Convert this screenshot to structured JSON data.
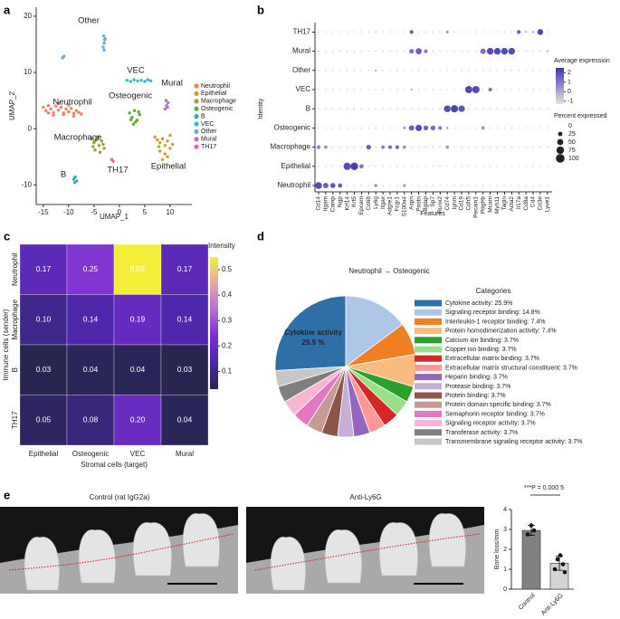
{
  "chart_data": [
    {
      "panel": "a",
      "type": "scatter",
      "xlabel": "UMAP_1",
      "ylabel": "UMAP_2",
      "xlim": [
        -16.4,
        14.3
      ],
      "ylim": [
        -13.5,
        21.6
      ],
      "xticks": [
        -15,
        -10,
        -5,
        0,
        5,
        10
      ],
      "yticks": [
        -10,
        0,
        10,
        20
      ],
      "series": [
        {
          "name": "Neutrophil",
          "color": "#f4806b",
          "x": [
            -15,
            -14.5,
            -14,
            -13.5,
            -13,
            -12.5,
            -12,
            -11.5,
            -11,
            -10.5,
            -10,
            -9.5,
            -9,
            -8.5,
            -8,
            -7.5,
            -14,
            -13,
            -12,
            -11,
            -10,
            -9
          ],
          "y": [
            3.8,
            3.2,
            4.1,
            3.5,
            2.9,
            4.0,
            3.3,
            3.8,
            2.8,
            3.5,
            3.0,
            3.6,
            2.7,
            3.2,
            2.9,
            2.6,
            2.8,
            2.4,
            4.5,
            2.5,
            4.2,
            2.2
          ]
        },
        {
          "name": "Epithelial",
          "color": "#d19a37",
          "x": [
            7,
            7.5,
            8,
            8.5,
            9,
            9.5,
            10,
            10.5,
            8,
            9,
            8.5,
            9.5,
            7.8,
            10
          ],
          "y": [
            -1.5,
            -2,
            -2.5,
            -1.8,
            -3,
            -2.2,
            -3.5,
            -2.8,
            -4,
            -4.5,
            -5.5,
            -5,
            -3.2,
            -1.2
          ]
        },
        {
          "name": "Macrophage",
          "color": "#a1a02a",
          "x": [
            -5.5,
            -5,
            -4.5,
            -4,
            -3.5,
            -3,
            -4.8,
            -3.8,
            -4.2,
            -5.2,
            -3.2
          ],
          "y": [
            -1.8,
            -2.5,
            -2,
            -3,
            -2.2,
            -3.5,
            -3.8,
            -4.2,
            -1.5,
            -3.2,
            -2.8
          ]
        },
        {
          "name": "Osteogenic",
          "color": "#5bb133",
          "x": [
            2,
            2.5,
            3,
            3.5,
            4,
            2.8,
            3.2,
            3.8,
            2.3
          ],
          "y": [
            2.8,
            2,
            3.2,
            1.5,
            2.5,
            0.8,
            1.2,
            3,
            1.6
          ]
        },
        {
          "name": "B",
          "color": "#2fb3a0",
          "x": [
            -9,
            -8.7,
            -8.4,
            -8.8
          ],
          "y": [
            -9,
            -8.6,
            -9.3,
            -9.6
          ]
        },
        {
          "name": "VEC",
          "color": "#3cb8c4",
          "x": [
            1.5,
            2.2,
            2.9,
            3.6,
            4.3,
            5,
            5.6,
            6.2
          ],
          "y": [
            8.6,
            8.4,
            8.7,
            8.5,
            8.6,
            8.4,
            8.7,
            8.5
          ]
        },
        {
          "name": "Other",
          "color": "#6da8dc",
          "x": [
            -3.2,
            -3,
            -2.8,
            -3.1,
            -2.9,
            -3,
            -11.2,
            -10.9
          ],
          "y": [
            14.5,
            15.2,
            16,
            16.5,
            15.8,
            14,
            12.6,
            12.9
          ]
        },
        {
          "name": "Mural",
          "color": "#b36fd6",
          "x": [
            9,
            9.3,
            9.6,
            9.2,
            9.5
          ],
          "y": [
            3.5,
            4.1,
            4.6,
            5,
            3.8
          ]
        },
        {
          "name": "TH17",
          "color": "#e563b8",
          "x": [
            -1.5,
            -1.2
          ],
          "y": [
            -5.5,
            -5.8
          ]
        }
      ],
      "annotations": [
        "Other",
        "VEC",
        "Osteogenic",
        "Neutrophil",
        "Mural",
        "Macrophage",
        "B",
        "TH17",
        "Epithelial"
      ]
    },
    {
      "panel": "b",
      "type": "dot",
      "ylabel": "Identity",
      "xlabel": "Features",
      "identities": [
        "Neutrophil",
        "Epithelial",
        "Macrophage",
        "Osteogenic",
        "B",
        "VEC",
        "Other",
        "Mural",
        "TH17"
      ],
      "features": [
        "Cd14",
        "Itgam",
        "Camp",
        "Ngp",
        "Krt14",
        "Krt5",
        "Epcam",
        "Cd68",
        "Ly6g",
        "Itgax",
        "Adgre1",
        "Fcgr1",
        "S100a4",
        "Aspn",
        "Postn",
        "Bglap",
        "Sp7",
        "Runx2",
        "Cd74",
        "Ighm",
        "Cd19",
        "Cdh5",
        "Pecam1",
        "Pdgfrb",
        "Mcam",
        "Myh11",
        "Tagln",
        "Acta2",
        "Il17a",
        "Cd8a",
        "Cd4",
        "Cd3e",
        "Lyve1"
      ],
      "percent": [
        [
          60,
          40,
          35,
          25,
          2,
          2,
          2,
          2,
          10,
          2,
          2,
          2,
          10,
          2,
          2,
          2,
          2,
          2,
          2,
          2,
          2,
          2,
          2,
          2,
          2,
          2,
          2,
          2,
          2,
          2,
          2,
          2,
          2
        ],
        [
          2,
          2,
          2,
          2,
          70,
          75,
          25,
          2,
          2,
          2,
          2,
          2,
          2,
          2,
          2,
          2,
          2,
          2,
          2,
          2,
          2,
          2,
          2,
          2,
          2,
          2,
          2,
          2,
          2,
          2,
          2,
          2,
          2
        ],
        [
          20,
          15,
          2,
          2,
          2,
          2,
          2,
          30,
          2,
          15,
          20,
          20,
          15,
          2,
          2,
          2,
          2,
          2,
          15,
          2,
          2,
          2,
          2,
          2,
          2,
          2,
          2,
          2,
          2,
          2,
          2,
          2,
          2
        ],
        [
          2,
          2,
          2,
          2,
          2,
          2,
          2,
          2,
          2,
          2,
          2,
          2,
          10,
          40,
          55,
          30,
          30,
          20,
          8,
          2,
          2,
          2,
          2,
          15,
          2,
          2,
          2,
          2,
          2,
          2,
          2,
          2,
          2
        ],
        [
          2,
          2,
          2,
          2,
          2,
          2,
          2,
          2,
          2,
          2,
          2,
          2,
          2,
          2,
          2,
          2,
          2,
          2,
          60,
          70,
          55,
          2,
          2,
          2,
          2,
          2,
          2,
          2,
          2,
          2,
          2,
          2,
          2
        ],
        [
          2,
          2,
          2,
          2,
          2,
          2,
          2,
          2,
          2,
          2,
          2,
          2,
          2,
          5,
          2,
          2,
          2,
          2,
          2,
          2,
          2,
          70,
          70,
          2,
          20,
          2,
          2,
          2,
          2,
          2,
          2,
          2,
          2
        ],
        [
          2,
          2,
          2,
          2,
          2,
          2,
          2,
          2,
          5,
          2,
          2,
          2,
          2,
          2,
          2,
          2,
          2,
          2,
          2,
          2,
          2,
          2,
          2,
          2,
          2,
          2,
          2,
          2,
          2,
          2,
          2,
          2,
          2
        ],
        [
          2,
          2,
          2,
          2,
          2,
          2,
          2,
          2,
          2,
          2,
          2,
          2,
          2,
          30,
          50,
          20,
          2,
          2,
          2,
          2,
          2,
          2,
          2,
          40,
          60,
          60,
          60,
          60,
          2,
          2,
          2,
          2,
          5
        ],
        [
          2,
          2,
          2,
          2,
          2,
          2,
          2,
          2,
          2,
          2,
          2,
          2,
          2,
          20,
          2,
          2,
          2,
          2,
          10,
          2,
          2,
          2,
          2,
          2,
          2,
          2,
          2,
          2,
          20,
          5,
          5,
          45,
          2
        ]
      ],
      "expression": [
        [
          2,
          1.5,
          1.8,
          1.5,
          -0.5,
          -0.5,
          -0.5,
          -0.5,
          1,
          -0.5,
          -0.5,
          -0.5,
          0.5,
          -0.5,
          -0.5,
          -0.5,
          -0.5,
          -0.5,
          -0.5,
          -0.5,
          -0.5,
          -0.5,
          -0.5,
          -0.5,
          -0.5,
          -0.5,
          -0.5,
          -0.5,
          -0.5,
          -0.5,
          -0.5,
          -0.5,
          -0.5
        ],
        [
          -0.5,
          -0.5,
          -0.5,
          -0.5,
          2,
          2.2,
          1,
          -0.5,
          -0.5,
          -0.5,
          -0.5,
          -0.5,
          -0.5,
          -0.5,
          -0.5,
          -0.5,
          -0.5,
          -0.5,
          -0.5,
          -0.5,
          -0.5,
          -0.5,
          -0.5,
          -0.5,
          -0.5,
          -0.5,
          -0.5,
          -0.5,
          -0.5,
          -0.5,
          -0.5,
          -0.5,
          -0.5
        ],
        [
          0.8,
          0.5,
          -0.5,
          -0.5,
          -0.5,
          -0.5,
          -0.5,
          1.5,
          -0.5,
          1,
          1.2,
          1.3,
          0.5,
          -0.5,
          -0.5,
          -0.5,
          -0.5,
          -0.5,
          0.3,
          -0.5,
          -0.5,
          -0.5,
          -0.5,
          -0.5,
          -0.5,
          -0.5,
          -0.5,
          -0.5,
          -0.5,
          -0.5,
          -0.5,
          -0.5,
          -0.5
        ],
        [
          -0.5,
          -0.5,
          -0.5,
          -0.5,
          -0.5,
          -0.5,
          -0.5,
          -0.5,
          -0.5,
          -0.5,
          -0.5,
          -0.5,
          0.2,
          1.5,
          2,
          1.5,
          1.3,
          1,
          0,
          -0.5,
          -0.5,
          -0.5,
          -0.5,
          0.5,
          -0.5,
          -0.5,
          -0.5,
          -0.5,
          -0.5,
          -0.5,
          -0.5,
          -0.5,
          -0.5
        ],
        [
          -0.5,
          -0.5,
          -0.5,
          -0.5,
          -0.5,
          -0.5,
          -0.5,
          -0.5,
          -0.5,
          -0.5,
          -0.5,
          -0.5,
          -0.5,
          -0.5,
          -0.5,
          -0.5,
          -0.5,
          -0.5,
          2,
          2.2,
          1.8,
          -0.5,
          -0.5,
          -0.5,
          -0.5,
          -0.5,
          -0.5,
          -0.5,
          -0.5,
          -0.5,
          -0.5,
          -0.5,
          -0.5
        ],
        [
          -0.5,
          -0.5,
          -0.5,
          -0.5,
          -0.5,
          -0.5,
          -0.5,
          -0.5,
          -0.5,
          -0.5,
          -0.5,
          -0.5,
          -0.5,
          0,
          -0.5,
          -0.5,
          -0.5,
          -0.5,
          -0.5,
          -0.5,
          -0.5,
          2,
          2,
          -0.5,
          1,
          -0.5,
          -0.5,
          -0.5,
          -0.5,
          -0.5,
          -0.5,
          -0.5,
          -0.5
        ],
        [
          -0.5,
          -0.5,
          -0.5,
          -0.5,
          -0.5,
          -0.5,
          -0.5,
          -0.5,
          0.2,
          -0.5,
          -0.5,
          -0.5,
          -0.5,
          -0.5,
          -0.5,
          -0.5,
          -0.5,
          -0.5,
          -0.5,
          -0.5,
          -0.5,
          -0.5,
          -0.5,
          -0.5,
          -0.5,
          -0.5,
          -0.5,
          -0.5,
          -0.5,
          -0.5,
          -0.5,
          -0.5,
          -0.5
        ],
        [
          -0.5,
          -0.5,
          -0.5,
          -0.5,
          -0.5,
          -0.5,
          -0.5,
          -0.5,
          -0.5,
          -0.5,
          -0.5,
          -0.5,
          -0.5,
          1,
          1.5,
          0.8,
          -0.5,
          -0.5,
          -0.5,
          -0.5,
          -0.5,
          -0.5,
          -0.5,
          1.2,
          2,
          2,
          2,
          2,
          -0.5,
          -0.5,
          -0.5,
          -0.5,
          0
        ],
        [
          -0.5,
          -0.5,
          -0.5,
          -0.5,
          -0.5,
          -0.5,
          -0.5,
          -0.5,
          -0.5,
          -0.5,
          -0.5,
          -0.5,
          -0.5,
          1.5,
          -0.5,
          -0.5,
          -0.5,
          -0.5,
          0.5,
          -0.5,
          -0.5,
          -0.5,
          -0.5,
          -0.5,
          -0.5,
          -0.5,
          -0.5,
          -0.5,
          1.5,
          0,
          0.5,
          2.2,
          -0.5
        ]
      ],
      "colorbar_title": "Average expression",
      "clim": [
        -1.3,
        2.5
      ],
      "cticks": [
        2,
        1,
        0,
        -1
      ],
      "colors": [
        "#e3e3e3",
        "#3d34b0"
      ],
      "size_title": "Percent expressed",
      "size_ticks": [
        0,
        25,
        50,
        75,
        100
      ]
    },
    {
      "panel": "c",
      "type": "heatmap",
      "rows": [
        "Neutrophil",
        "Macrophage",
        "B",
        "TH17"
      ],
      "columns": [
        "Epithelial",
        "Osteogenic",
        "VEC",
        "Mural"
      ],
      "values": [
        [
          0.17,
          0.25,
          0.55,
          0.17
        ],
        [
          0.1,
          0.14,
          0.19,
          0.14
        ],
        [
          0.03,
          0.04,
          0.04,
          0.03
        ],
        [
          0.05,
          0.08,
          0.2,
          0.04
        ]
      ],
      "value_labels": [
        [
          "0.17",
          "0.25",
          "0.55",
          "0.17"
        ],
        [
          "0.10",
          "0.14",
          "0.19",
          "0.14"
        ],
        [
          "0.03",
          "0.04",
          "0.04",
          "0.03"
        ],
        [
          "0.05",
          "0.08",
          "0.20",
          "0.04"
        ]
      ],
      "ylabel": "Immune cells (sender)",
      "xlabel": "Stromal cells (target)",
      "colorbar_title": "Intensity",
      "clim": [
        0.03,
        0.55
      ],
      "cticks": [
        0.1,
        0.2,
        0.3,
        0.4,
        0.5
      ],
      "colorscale": [
        "#262650",
        "#4b28a8",
        "#7a2ed0",
        "#b070d8",
        "#e0a8a8",
        "#f3ee3a"
      ]
    },
    {
      "panel": "d",
      "type": "pie",
      "title": "Neutrophil → Osteogenic",
      "legend_title": "Categories",
      "categories": [
        "Cytokine activity",
        "Signaling receptor binding",
        "Interleukin-1 receptor binding",
        "Protein homodimerization activity",
        "Calcium ion binding",
        "Copper ion binding",
        "Extracellular matrix binding",
        "Extracellular matrix structural constituent",
        "Heparin binding",
        "Protease binding",
        "Protein binding",
        "Protein domain specific binding",
        "Semaphorin receptor binding",
        "Signaling receptor activity",
        "Transferase activity",
        "Transmembrane signaling receptor activity"
      ],
      "values": [
        25.9,
        14.8,
        7.4,
        7.4,
        3.7,
        3.7,
        3.7,
        3.7,
        3.7,
        3.7,
        3.7,
        3.7,
        3.7,
        3.7,
        3.7,
        3.7
      ],
      "value_labels": [
        "25.9%",
        "14.8%",
        "7.4%",
        "7.4%",
        "3.7%",
        "3.7%",
        "3.7%",
        "3.7%",
        "3.7%",
        "3.7%",
        "3.7%",
        "3.7%",
        "3.7%",
        "3.7%",
        "3.7%",
        "3.7%"
      ],
      "colors": [
        "#2e6fa7",
        "#aec7e8",
        "#f07f22",
        "#f8bb80",
        "#2ca02c",
        "#98df8a",
        "#d62728",
        "#ff9896",
        "#9467bd",
        "#c5b0d5",
        "#8c564b",
        "#c49c94",
        "#e377c2",
        "#f7b6d2",
        "#7f7f7f",
        "#c7c7c7"
      ],
      "slice_label": "25.9 %"
    },
    {
      "panel": "e",
      "type": "bar",
      "images": [
        "Control (rat IgG2a)",
        "Anti-Ly6G"
      ],
      "categories": [
        "Control",
        "Anti-Ly6G"
      ],
      "values": [
        2.95,
        1.3
      ],
      "errors": [
        0.25,
        0.35
      ],
      "points": [
        [
          3.2,
          2.75,
          2.95
        ],
        [
          1.0,
          1.25,
          1.5,
          0.85,
          1.7
        ]
      ],
      "ylim": [
        0,
        4
      ],
      "yticks": [
        0,
        1,
        2,
        3,
        4
      ],
      "ylabel": "Bone loss/mm",
      "annotation": "***P = 0.000 5",
      "colors": [
        "#808080",
        "#d3d3d3"
      ]
    }
  ]
}
